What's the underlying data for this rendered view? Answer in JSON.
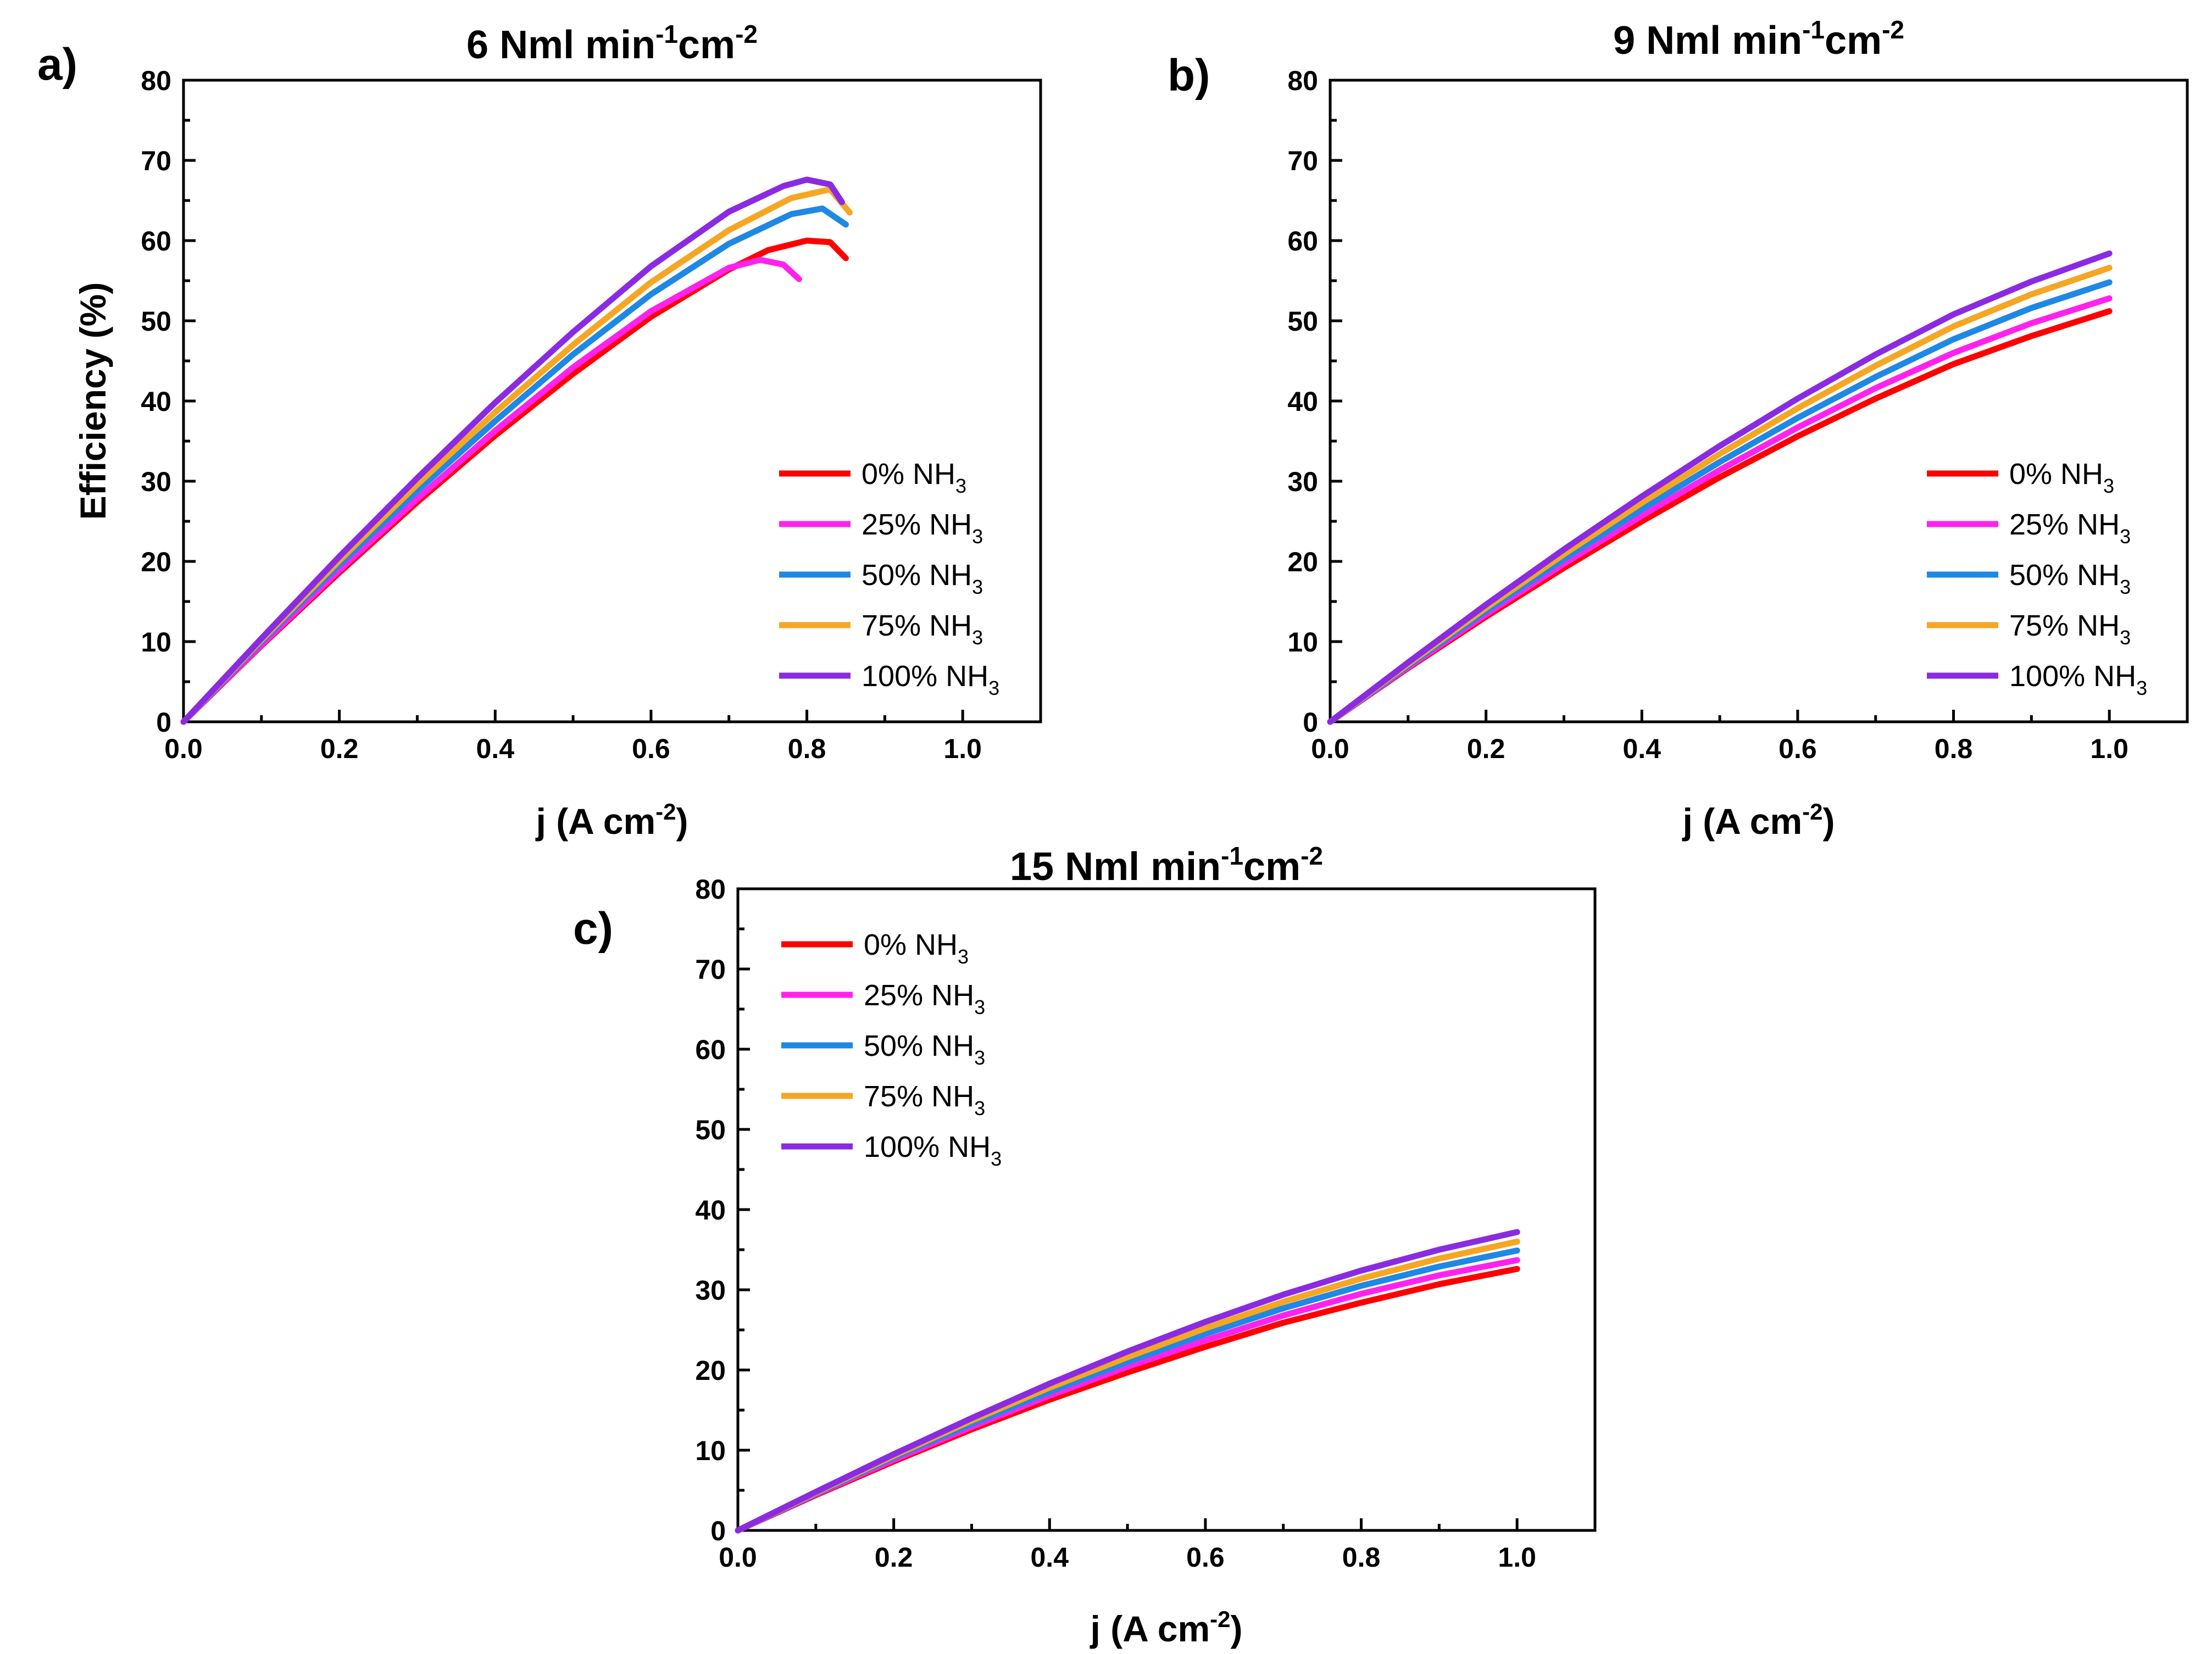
{
  "chart_data": [
    {
      "id": "a",
      "panel_label": "a)",
      "type": "line",
      "title_main": "6 Nml min",
      "title_sup1": "-1",
      "title_mid": "cm",
      "title_sup2": "-2",
      "xlabel_main": "j (A cm",
      "xlabel_sup": "-2",
      "xlabel_end": ")",
      "ylabel": "Efficiency (%)",
      "xlim": [
        0,
        1.1
      ],
      "ylim": [
        0,
        80
      ],
      "xticks": [
        "0.0",
        "0.2",
        "0.4",
        "0.6",
        "0.8",
        "1.0"
      ],
      "yticks": [
        "0",
        "10",
        "20",
        "30",
        "40",
        "50",
        "60",
        "70",
        "80"
      ],
      "legend_position": "bottom-right",
      "series": [
        {
          "name": "0% NH",
          "sub": "3",
          "color": "#ff0000",
          "x": [
            0,
            0.1,
            0.2,
            0.3,
            0.4,
            0.5,
            0.6,
            0.7,
            0.75,
            0.8,
            0.83,
            0.85
          ],
          "y": [
            0,
            9.5,
            18.6,
            27.4,
            35.7,
            43.4,
            50.5,
            56.4,
            58.8,
            60.0,
            59.8,
            57.8
          ]
        },
        {
          "name": "25% NH",
          "sub": "3",
          "color": "#ff22ee",
          "x": [
            0,
            0.1,
            0.2,
            0.3,
            0.4,
            0.5,
            0.6,
            0.7,
            0.74,
            0.77,
            0.79
          ],
          "y": [
            0,
            9.6,
            18.9,
            27.8,
            36.3,
            44.2,
            51.2,
            56.6,
            57.6,
            57.0,
            55.2
          ]
        },
        {
          "name": "50% NH",
          "sub": "3",
          "color": "#1e88e5",
          "x": [
            0,
            0.1,
            0.2,
            0.3,
            0.4,
            0.5,
            0.6,
            0.7,
            0.78,
            0.82,
            0.85
          ],
          "y": [
            0,
            10.0,
            19.6,
            28.8,
            37.5,
            45.8,
            53.3,
            59.6,
            63.3,
            64.0,
            62.0
          ]
        },
        {
          "name": "75% NH",
          "sub": "3",
          "color": "#f5a623",
          "x": [
            0,
            0.1,
            0.2,
            0.3,
            0.4,
            0.5,
            0.6,
            0.7,
            0.78,
            0.83,
            0.855
          ],
          "y": [
            0,
            10.2,
            20.1,
            29.6,
            38.6,
            47.0,
            54.8,
            61.3,
            65.3,
            66.4,
            63.5
          ]
        },
        {
          "name": "100% NH",
          "sub": "3",
          "color": "#8a2be2",
          "x": [
            0,
            0.1,
            0.2,
            0.3,
            0.4,
            0.5,
            0.6,
            0.7,
            0.77,
            0.8,
            0.83,
            0.845
          ],
          "y": [
            0,
            10.4,
            20.6,
            30.4,
            39.8,
            48.6,
            56.8,
            63.6,
            66.8,
            67.6,
            67.0,
            64.8
          ]
        }
      ]
    },
    {
      "id": "b",
      "panel_label": "b)",
      "type": "line",
      "title_main": "9 Nml min",
      "title_sup1": "-1",
      "title_mid": "cm",
      "title_sup2": "-2",
      "xlabel_main": "j (A cm",
      "xlabel_sup": "-2",
      "xlabel_end": ")",
      "ylabel": "",
      "xlim": [
        0,
        1.1
      ],
      "ylim": [
        0,
        80
      ],
      "xticks": [
        "0.0",
        "0.2",
        "0.4",
        "0.6",
        "0.8",
        "1.0"
      ],
      "yticks": [
        "0",
        "10",
        "20",
        "30",
        "40",
        "50",
        "60",
        "70",
        "80"
      ],
      "legend_position": "bottom-right",
      "series": [
        {
          "name": "0% NH",
          "sub": "3",
          "color": "#ff0000",
          "x": [
            0,
            0.1,
            0.2,
            0.3,
            0.4,
            0.5,
            0.6,
            0.7,
            0.8,
            0.9,
            1.0
          ],
          "y": [
            0,
            6.7,
            13.1,
            19.2,
            25.0,
            30.5,
            35.6,
            40.3,
            44.6,
            48.1,
            51.2
          ]
        },
        {
          "name": "25% NH",
          "sub": "3",
          "color": "#ff22ee",
          "x": [
            0,
            0.1,
            0.2,
            0.3,
            0.4,
            0.5,
            0.6,
            0.7,
            0.8,
            0.9,
            1.0
          ],
          "y": [
            0,
            6.8,
            13.4,
            19.7,
            25.7,
            31.4,
            36.7,
            41.6,
            46.0,
            49.7,
            52.8
          ]
        },
        {
          "name": "50% NH",
          "sub": "3",
          "color": "#1e88e5",
          "x": [
            0,
            0.1,
            0.2,
            0.3,
            0.4,
            0.5,
            0.6,
            0.7,
            0.8,
            0.9,
            1.0
          ],
          "y": [
            0,
            7.0,
            13.8,
            20.3,
            26.5,
            32.4,
            37.9,
            43.0,
            47.7,
            51.6,
            54.8
          ]
        },
        {
          "name": "75% NH",
          "sub": "3",
          "color": "#f5a623",
          "x": [
            0,
            0.1,
            0.2,
            0.3,
            0.4,
            0.5,
            0.6,
            0.7,
            0.8,
            0.9,
            1.0
          ],
          "y": [
            0,
            7.2,
            14.2,
            20.9,
            27.3,
            33.4,
            39.1,
            44.4,
            49.3,
            53.3,
            56.6
          ]
        },
        {
          "name": "100% NH",
          "sub": "3",
          "color": "#8a2be2",
          "x": [
            0,
            0.1,
            0.2,
            0.3,
            0.4,
            0.5,
            0.6,
            0.7,
            0.8,
            0.9,
            1.0
          ],
          "y": [
            0,
            7.4,
            14.6,
            21.5,
            28.1,
            34.4,
            40.3,
            45.8,
            50.8,
            54.9,
            58.4
          ]
        }
      ]
    },
    {
      "id": "c",
      "panel_label": "c)",
      "type": "line",
      "title_main": "15 Nml min",
      "title_sup1": "-1",
      "title_mid": "cm",
      "title_sup2": "-2",
      "xlabel_main": "j (A cm",
      "xlabel_sup": "-2",
      "xlabel_end": ")",
      "ylabel": "",
      "xlim": [
        0,
        1.1
      ],
      "ylim": [
        0,
        80
      ],
      "xticks": [
        "0.0",
        "0.2",
        "0.4",
        "0.6",
        "0.8",
        "1.0"
      ],
      "yticks": [
        "0",
        "10",
        "20",
        "30",
        "40",
        "50",
        "60",
        "70",
        "80"
      ],
      "legend_position": "top-left",
      "series": [
        {
          "name": "0% NH",
          "sub": "3",
          "color": "#ff0000",
          "x": [
            0,
            0.1,
            0.2,
            0.3,
            0.4,
            0.5,
            0.6,
            0.7,
            0.8,
            0.9,
            1.0
          ],
          "y": [
            0,
            4.4,
            8.6,
            12.6,
            16.3,
            19.7,
            22.9,
            25.9,
            28.4,
            30.7,
            32.6
          ]
        },
        {
          "name": "25% NH",
          "sub": "3",
          "color": "#ff22ee",
          "x": [
            0,
            0.1,
            0.2,
            0.3,
            0.4,
            0.5,
            0.6,
            0.7,
            0.8,
            0.9,
            1.0
          ],
          "y": [
            0,
            4.5,
            8.8,
            12.9,
            16.8,
            20.4,
            23.7,
            26.8,
            29.5,
            31.8,
            33.7
          ]
        },
        {
          "name": "50% NH",
          "sub": "3",
          "color": "#1e88e5",
          "x": [
            0,
            0.1,
            0.2,
            0.3,
            0.4,
            0.5,
            0.6,
            0.7,
            0.8,
            0.9,
            1.0
          ],
          "y": [
            0,
            4.6,
            9.1,
            13.3,
            17.3,
            21.0,
            24.5,
            27.7,
            30.5,
            32.9,
            34.9
          ]
        },
        {
          "name": "75% NH",
          "sub": "3",
          "color": "#f5a623",
          "x": [
            0,
            0.1,
            0.2,
            0.3,
            0.4,
            0.5,
            0.6,
            0.7,
            0.8,
            0.9,
            1.0
          ],
          "y": [
            0,
            4.7,
            9.3,
            13.7,
            17.8,
            21.6,
            25.2,
            28.5,
            31.4,
            33.9,
            36.0
          ]
        },
        {
          "name": "100% NH",
          "sub": "3",
          "color": "#8a2be2",
          "x": [
            0,
            0.1,
            0.2,
            0.3,
            0.4,
            0.5,
            0.6,
            0.7,
            0.8,
            0.9,
            1.0
          ],
          "y": [
            0,
            4.8,
            9.5,
            14.0,
            18.3,
            22.3,
            26.0,
            29.4,
            32.4,
            35.0,
            37.2
          ]
        }
      ]
    }
  ]
}
